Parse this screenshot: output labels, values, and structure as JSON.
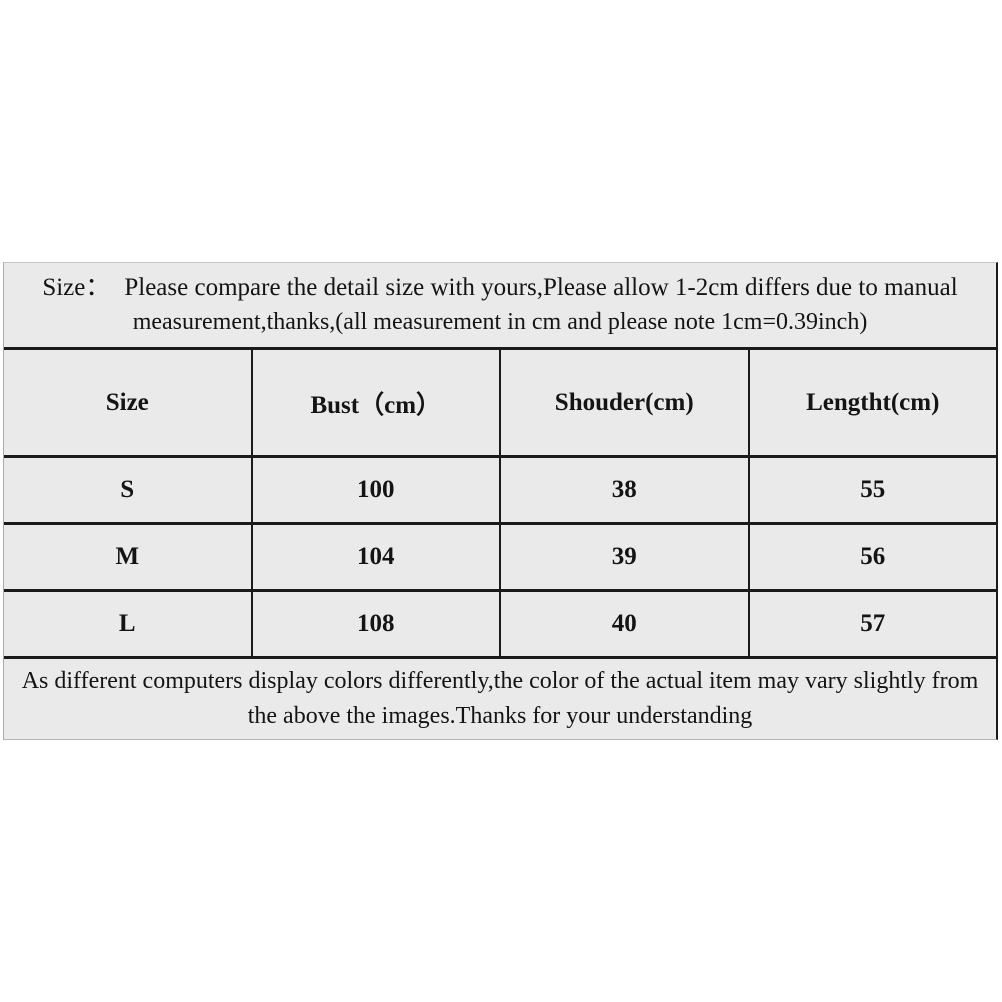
{
  "colors": {
    "page_background": "#ffffff",
    "table_background": "#eaeaea",
    "border_dark": "#1b1b1b",
    "border_light": "#ababab",
    "text": "#141414"
  },
  "top_note": {
    "label": "Size：",
    "line1": "Please compare the detail size with yours,Please allow 1-2cm differs due to manual",
    "line2": "measurement,thanks,(all measurement in cm and please note 1cm=0.39inch)"
  },
  "table": {
    "headers": [
      "Size",
      "Bust（cm）",
      "Shouder(cm)",
      "Lengtht(cm)"
    ],
    "rows": [
      {
        "size": "S",
        "bust": "100",
        "shoulder": "38",
        "length": "55"
      },
      {
        "size": "M",
        "bust": "104",
        "shoulder": "39",
        "length": "56"
      },
      {
        "size": "L",
        "bust": "108",
        "shoulder": "40",
        "length": "57"
      }
    ]
  },
  "bottom_note": {
    "line1": "As different computers display colors differently,the color of the actual item may vary slightly from",
    "line2": "the above the images.Thanks for your understanding"
  }
}
